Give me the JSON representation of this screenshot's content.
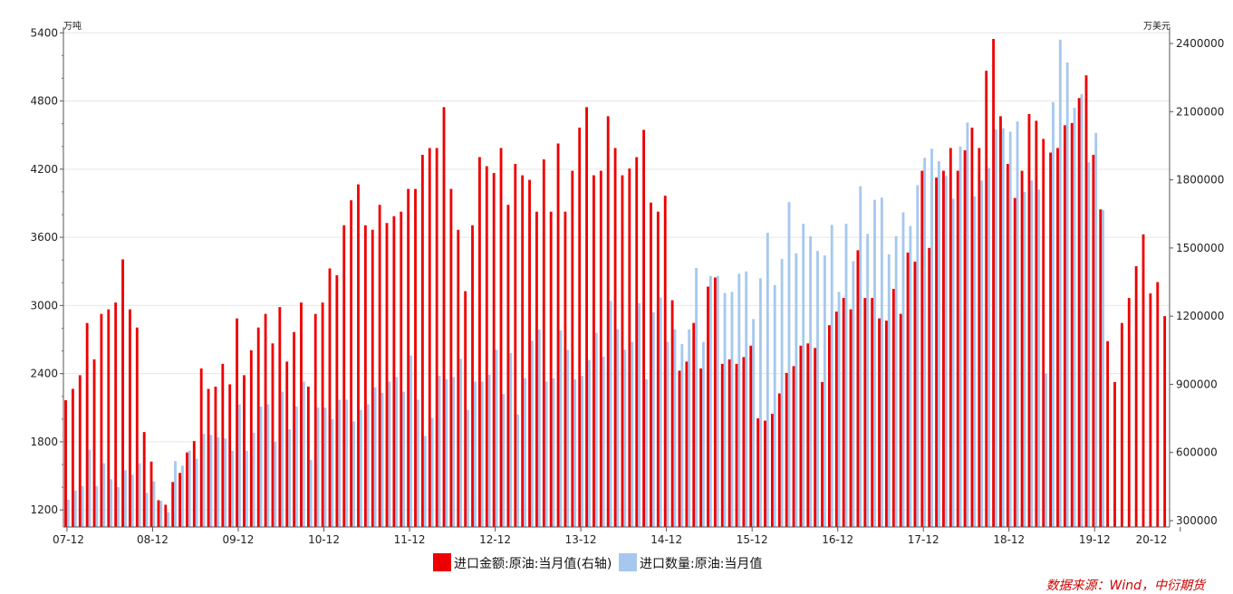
{
  "chart_data": {
    "type": "bar",
    "left_axis_unit": "万吨",
    "right_axis_unit": "万美元",
    "left_ticks": [
      "1200",
      "1800",
      "2400",
      "3000",
      "3600",
      "4200",
      "4800",
      "5400"
    ],
    "left_ylim": [
      1050,
      5450
    ],
    "right_ticks": [
      "300000",
      "600000",
      "900000",
      "1200000",
      "1500000",
      "1800000",
      "2100000",
      "2400000"
    ],
    "right_ylim": [
      272000,
      2472000
    ],
    "x_labels": [
      "07-12",
      "08-12",
      "09-12",
      "10-12",
      "11-12",
      "12-12",
      "13-12",
      "14-12",
      "15-12",
      "16-12",
      "17-12",
      "18-12",
      "19-12",
      "20-12"
    ],
    "series": [
      {
        "name": "进口金额:原油:当月值(右轴)",
        "color": "#ee0000",
        "axis": "right",
        "values": [
          830000,
          880000,
          940000,
          1170000,
          1010000,
          1210000,
          1230000,
          1260000,
          1450000,
          1230000,
          1150000,
          690000,
          560000,
          390000,
          370000,
          470000,
          510000,
          600000,
          650000,
          970000,
          880000,
          890000,
          990000,
          900000,
          1190000,
          940000,
          1050000,
          1150000,
          1210000,
          1080000,
          1240000,
          1000000,
          1130000,
          1260000,
          890000,
          1210000,
          1260000,
          1410000,
          1380000,
          1600000,
          1710000,
          1780000,
          1600000,
          1580000,
          1690000,
          1610000,
          1640000,
          1660000,
          1760000,
          1760000,
          1910000,
          1940000,
          1940000,
          2120000,
          1760000,
          1580000,
          1310000,
          1600000,
          1900000,
          1860000,
          1830000,
          1940000,
          1690000,
          1870000,
          1820000,
          1800000,
          1660000,
          1890000,
          1660000,
          1960000,
          1660000,
          1840000,
          2030000,
          2120000,
          1820000,
          1840000,
          2080000,
          1940000,
          1820000,
          1850000,
          1900000,
          2020000,
          1700000,
          1660000,
          1730000,
          1270000,
          960000,
          1000000,
          1170000,
          970000,
          1330000,
          1370000,
          990000,
          1010000,
          990000,
          1020000,
          1070000,
          750000,
          740000,
          770000,
          860000,
          950000,
          980000,
          1070000,
          1080000,
          1060000,
          910000,
          1160000,
          1220000,
          1280000,
          1230000,
          1490000,
          1280000,
          1280000,
          1190000,
          1180000,
          1320000,
          1210000,
          1480000,
          1440000,
          1840000,
          1500000,
          1810000,
          1840000,
          1940000,
          1840000,
          1930000,
          2030000,
          1940000,
          2280000,
          2420000,
          2080000,
          1870000,
          1720000,
          1840000,
          2090000,
          2060000,
          1980000,
          1920000,
          1940000,
          2040000,
          2050000,
          2160000,
          2260000,
          1910000,
          1670000,
          1090000,
          910000,
          1170000,
          1280000,
          1420000,
          1560000,
          1300000,
          1350000,
          1200000
        ]
      },
      {
        "name": "进口数量:原油:当月值",
        "color": "#a6c8ee",
        "axis": "left",
        "values": [
          1290,
          1370,
          1410,
          1730,
          1410,
          1610,
          1470,
          1400,
          1550,
          1510,
          1610,
          1350,
          1450,
          1280,
          1180,
          1630,
          1590,
          1720,
          1650,
          1870,
          1860,
          1840,
          1830,
          1720,
          2130,
          1720,
          1880,
          2110,
          2130,
          1800,
          2240,
          1910,
          2110,
          2330,
          1640,
          2100,
          2100,
          2000,
          2170,
          2170,
          1980,
          2080,
          2130,
          2280,
          2230,
          2330,
          2370,
          2240,
          2560,
          2170,
          1850,
          2010,
          2380,
          2350,
          2370,
          2530,
          2080,
          2330,
          2330,
          2390,
          2610,
          2220,
          2580,
          2040,
          2360,
          2690,
          2790,
          2330,
          2360,
          2780,
          2610,
          2350,
          2380,
          2520,
          2760,
          2550,
          3040,
          2790,
          2610,
          2680,
          3020,
          2350,
          2940,
          3070,
          2680,
          2790,
          2660,
          2790,
          3330,
          2680,
          3260,
          3260,
          3110,
          3120,
          3280,
          3300,
          2880,
          3240,
          3640,
          3180,
          3410,
          3910,
          3460,
          3720,
          3610,
          3480,
          3440,
          3710,
          3120,
          3720,
          3390,
          4050,
          3630,
          3930,
          3950,
          3450,
          3610,
          3820,
          3700,
          4060,
          4300,
          4380,
          4270,
          4140,
          3940,
          4400,
          4610,
          3960,
          4100,
          4210,
          4550,
          4560,
          4530,
          4620,
          4000,
          4100,
          4020,
          2400,
          4790,
          5340,
          5140,
          4740,
          4860,
          4260,
          4520,
          3840
        ]
      }
    ]
  },
  "legend": {
    "amount_label": "进口金额:原油:当月值(右轴)",
    "volume_label": "进口数量:原油:当月值"
  },
  "source": "数据来源：Wind，中衍期货"
}
